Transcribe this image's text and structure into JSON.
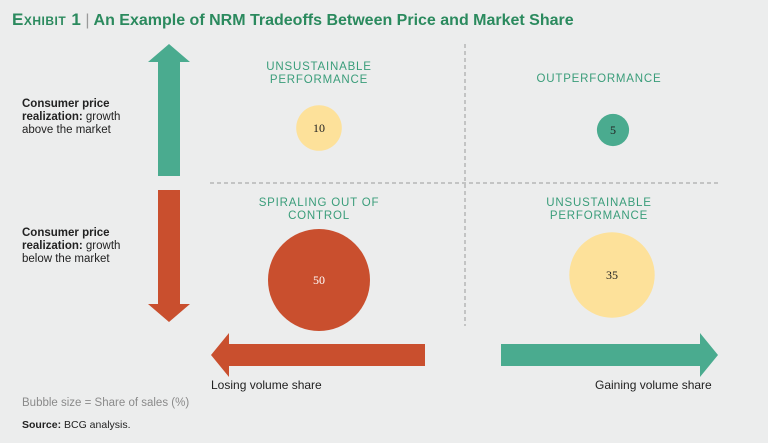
{
  "header": {
    "exhibit": "Exhibit 1",
    "separator": "|",
    "title": "An Example of NRM Tradeoffs Between Price and Market Share"
  },
  "rows": [
    {
      "lead": "Consumer price realization:",
      "rest": " growth above the market"
    },
    {
      "lead": "Consumer price realization:",
      "rest": " growth below the market"
    }
  ],
  "axis": {
    "left_label": "Losing volume share",
    "right_label": "Gaining volume share"
  },
  "colors": {
    "green": "#4aab8f",
    "red": "#c94f2e",
    "yellow": "#fde19a",
    "quad_text": "#3a9d7a",
    "title": "#2b8a5e"
  },
  "chart_data": {
    "type": "bubble-quadrant",
    "quadrants": [
      {
        "id": "top-left",
        "label": "Unsustainable performance",
        "value": 10,
        "color": "#fde19a"
      },
      {
        "id": "top-right",
        "label": "Outperformance",
        "value": 5,
        "color": "#4aab8f"
      },
      {
        "id": "bottom-left",
        "label": "Spiraling out of control",
        "value": 50,
        "color": "#c94f2e"
      },
      {
        "id": "bottom-right",
        "label": "Unsustainable performance",
        "value": 35,
        "color": "#fde19a"
      }
    ],
    "size_encoding": "Bubble size = Share of sales (%)"
  },
  "footer": {
    "note": "Bubble size = Share of sales (%)",
    "source_label": "Source:",
    "source_text": " BCG analysis."
  }
}
